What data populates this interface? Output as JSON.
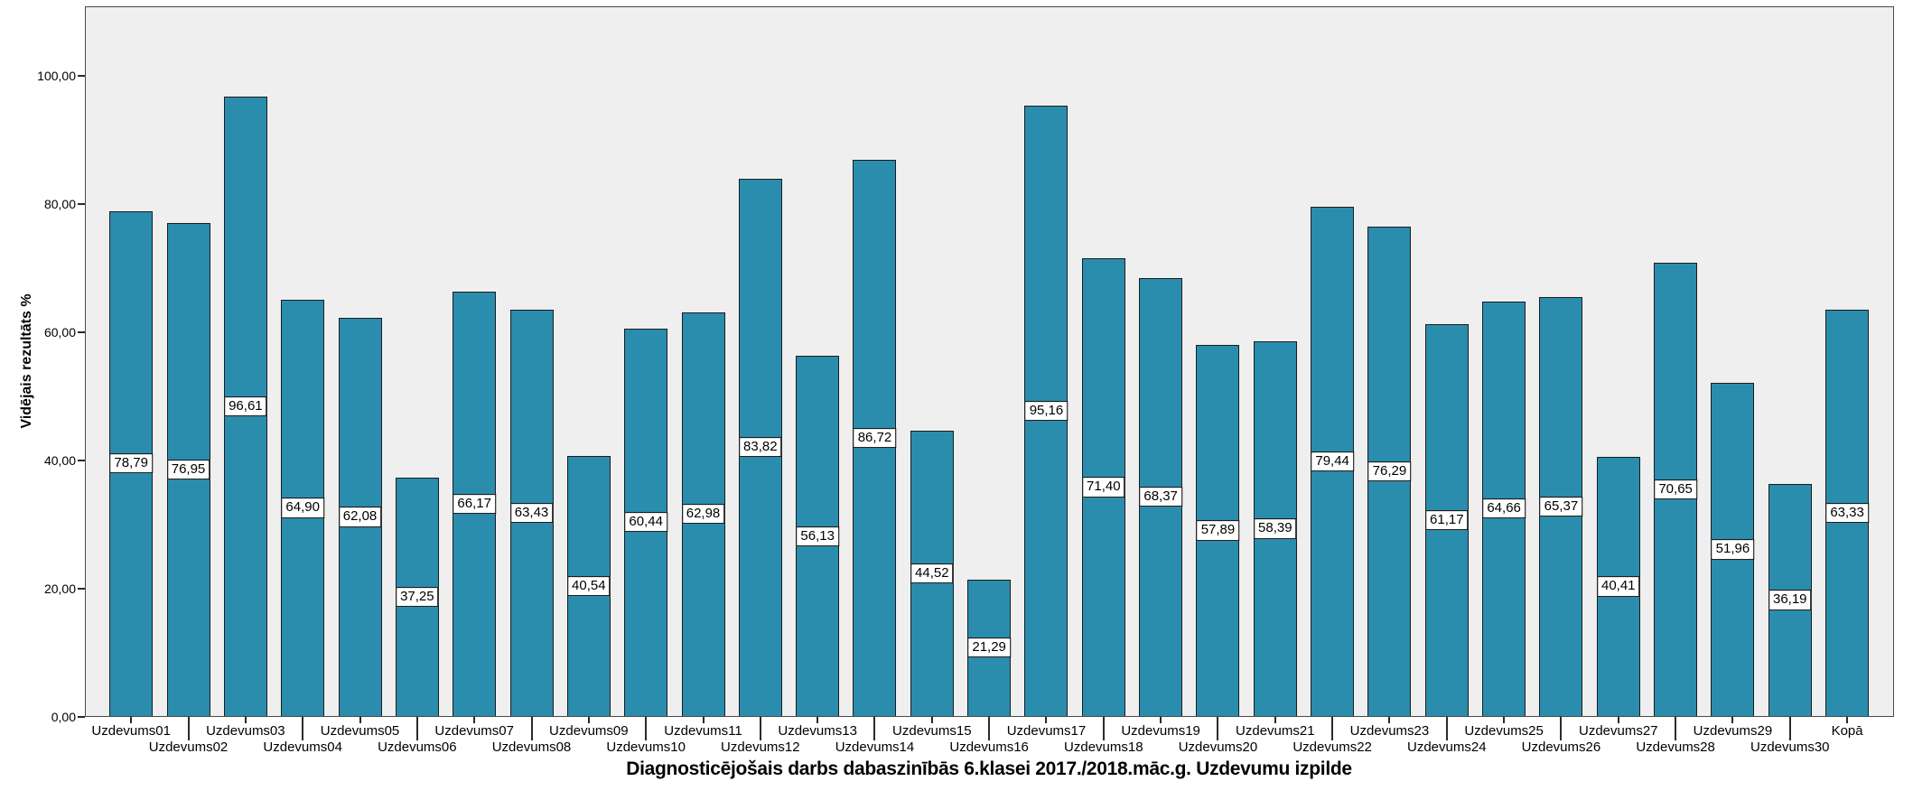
{
  "chart_data": {
    "type": "bar",
    "title": "Diagnosticējošais darbs dabaszinībās 6.klasei 2017./2018.māc.g. Uzdevumu izpilde",
    "ylabel": "Vidējais rezultāts %",
    "xlabel": "",
    "categories": [
      "Uzdevums01",
      "Uzdevums02",
      "Uzdevums03",
      "Uzdevums04",
      "Uzdevums05",
      "Uzdevums06",
      "Uzdevums07",
      "Uzdevums08",
      "Uzdevums09",
      "Uzdevums10",
      "Uzdevums11",
      "Uzdevums12",
      "Uzdevums13",
      "Uzdevums14",
      "Uzdevums15",
      "Uzdevums16",
      "Uzdevums17",
      "Uzdevums18",
      "Uzdevums19",
      "Uzdevums20",
      "Uzdevums21",
      "Uzdevums22",
      "Uzdevums23",
      "Uzdevums24",
      "Uzdevums25",
      "Uzdevums26",
      "Uzdevums27",
      "Uzdevums28",
      "Uzdevums29",
      "Uzdevums30",
      "Kopā"
    ],
    "values": [
      78.79,
      76.95,
      96.61,
      64.9,
      62.08,
      37.25,
      66.17,
      63.43,
      40.54,
      60.44,
      62.98,
      83.82,
      56.13,
      86.72,
      44.52,
      21.29,
      95.16,
      71.4,
      68.37,
      57.89,
      58.39,
      79.44,
      76.29,
      61.17,
      64.66,
      65.37,
      40.41,
      70.65,
      51.96,
      36.19,
      63.33
    ],
    "value_labels": [
      "78,79",
      "76,95",
      "96,61",
      "64,90",
      "62,08",
      "37,25",
      "66,17",
      "63,43",
      "40,54",
      "60,44",
      "62,98",
      "83,82",
      "56,13",
      "86,72",
      "44,52",
      "21,29",
      "95,16",
      "71,40",
      "68,37",
      "57,89",
      "58,39",
      "79,44",
      "76,29",
      "61,17",
      "64,66",
      "65,37",
      "40,41",
      "70,65",
      "51,96",
      "36,19",
      "63,33"
    ],
    "y_ticks": [
      {
        "label": "0,00",
        "value": 0
      },
      {
        "label": "20,00",
        "value": 20
      },
      {
        "label": "40,00",
        "value": 40
      },
      {
        "label": "60,00",
        "value": 60
      },
      {
        "label": "80,00",
        "value": 80
      },
      {
        "label": "100,00",
        "value": 100
      }
    ],
    "ylim": [
      0,
      100
    ],
    "grid": false,
    "legend": null,
    "decimal_separator": ",",
    "label_position": "bar-center",
    "x_label_layout": "staggered-two-rows",
    "colors": {
      "bar_fill": "#2a8dae",
      "bar_border": "#1c1c1c",
      "plot_bg": "#efefef",
      "plot_border": "#4a4a4a",
      "value_label_bg": "#ffffff",
      "value_label_border": "#000000",
      "text": "#000000",
      "page_bg": "#ffffff"
    }
  }
}
